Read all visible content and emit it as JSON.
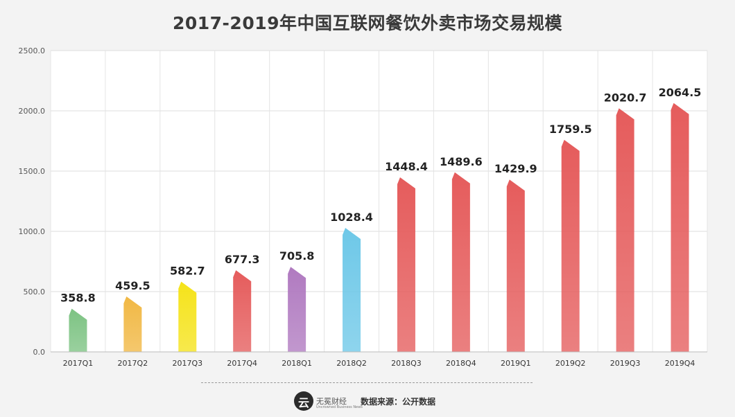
{
  "chart_data": {
    "type": "bar",
    "title": "2017-2019年中国互联网餐饮外卖市场交易规模",
    "categories": [
      "2017Q1",
      "2017Q2",
      "2017Q3",
      "2017Q4",
      "2018Q1",
      "2018Q2",
      "2018Q3",
      "2018Q4",
      "2019Q1",
      "2019Q2",
      "2019Q3",
      "2019Q4"
    ],
    "values": [
      358.8,
      459.5,
      582.7,
      677.3,
      705.8,
      1028.4,
      1448.4,
      1489.6,
      1429.9,
      1759.5,
      2020.7,
      2064.5
    ],
    "value_labels": [
      "358.8",
      "459.5",
      "582.7",
      "677.3",
      "705.8",
      "1028.4",
      "1448.4",
      "1489.6",
      "1429.9",
      "1759.5",
      "2020.7",
      "2064.5"
    ],
    "bar_colors": [
      "#7dc383",
      "#f1b844",
      "#f5e31a",
      "#e55c5c",
      "#b07ac0",
      "#6ec8e8",
      "#e55c5c",
      "#e55c5c",
      "#e55c5c",
      "#e55c5c",
      "#e55c5c",
      "#e55c5c"
    ],
    "ylim": [
      0,
      2500
    ],
    "yticks": [
      "0.0",
      "500.0",
      "1000.0",
      "1500.0",
      "2000.0",
      "2500.0"
    ],
    "xlabel": "",
    "ylabel": "",
    "grid": true,
    "legend": "none"
  },
  "footer": {
    "logo_glyph": "云",
    "logo_text": "无冕财经",
    "logo_subtext": "Uncrowned Business News",
    "source": "数据来源：公开数据"
  }
}
